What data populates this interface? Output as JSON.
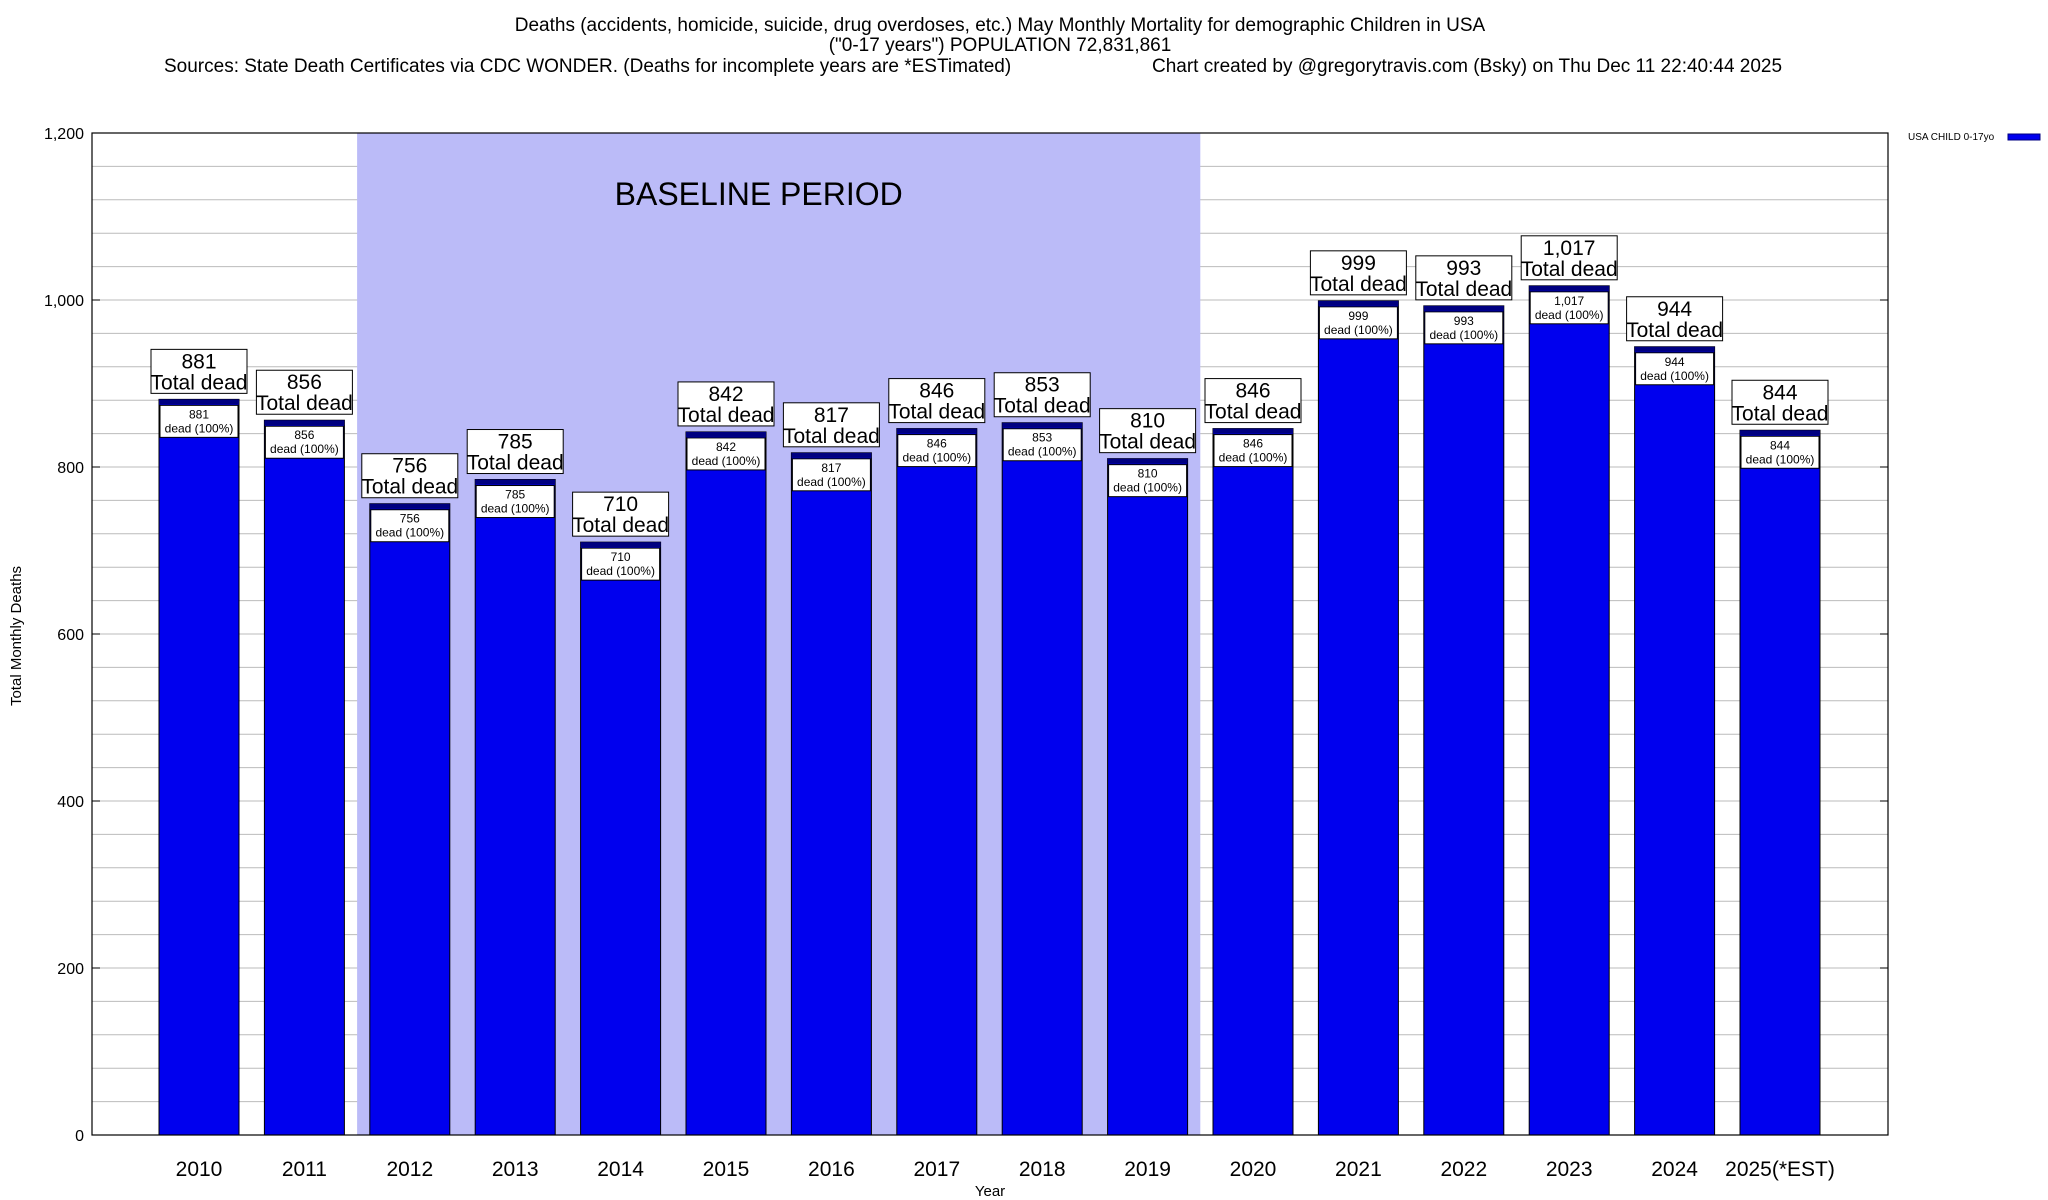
{
  "header": {
    "title_line1": "Deaths (accidents, homicide, suicide, drug overdoses, etc.) May Monthly Mortality for demographic Children in USA",
    "title_line2": "(\"0-17 years\") POPULATION 72,831,861",
    "sources": "Sources: State Death Certificates via CDC WONDER. (Deaths for incomplete years are *ESTimated)",
    "credit": "Chart created by @gregorytravis.com (Bsky) on Thu Dec 11 22:40:44 2025"
  },
  "colors": {
    "bar": "#0000ee",
    "bar_cap": "#000080",
    "baseline_region": "#bbbbf8",
    "grid": "#bbbbbb",
    "frame": "#000000"
  },
  "chart_data": {
    "type": "bar",
    "xlabel": "Year",
    "ylabel": "Total Monthly Deaths",
    "ylim": [
      0,
      1200
    ],
    "yticks": [
      0,
      200,
      400,
      600,
      800,
      1000,
      1200
    ],
    "ytick_labels": [
      "0",
      "200",
      "400",
      "600",
      "800",
      "1,000",
      "1,200"
    ],
    "minor_step": 40,
    "grid": true,
    "legend": {
      "label": "USA CHILD 0-17yo",
      "position": "top-right-outside"
    },
    "baseline": {
      "label": "BASELINE PERIOD",
      "start": "2012",
      "end": "2019"
    },
    "categories": [
      "2010",
      "2011",
      "2012",
      "2013",
      "2014",
      "2015",
      "2016",
      "2017",
      "2018",
      "2019",
      "2020",
      "2021",
      "2022",
      "2023",
      "2024",
      "2025(*EST)"
    ],
    "series": [
      {
        "name": "USA CHILD 0-17yo",
        "values": [
          881,
          856,
          756,
          785,
          710,
          842,
          817,
          846,
          853,
          810,
          846,
          999,
          993,
          1017,
          944,
          844
        ]
      }
    ],
    "value_labels": [
      "881",
      "856",
      "756",
      "785",
      "710",
      "842",
      "817",
      "846",
      "853",
      "810",
      "846",
      "999",
      "993",
      "1,017",
      "944",
      "844"
    ],
    "total_label": "Total dead",
    "inner_label": "dead (100%)"
  }
}
